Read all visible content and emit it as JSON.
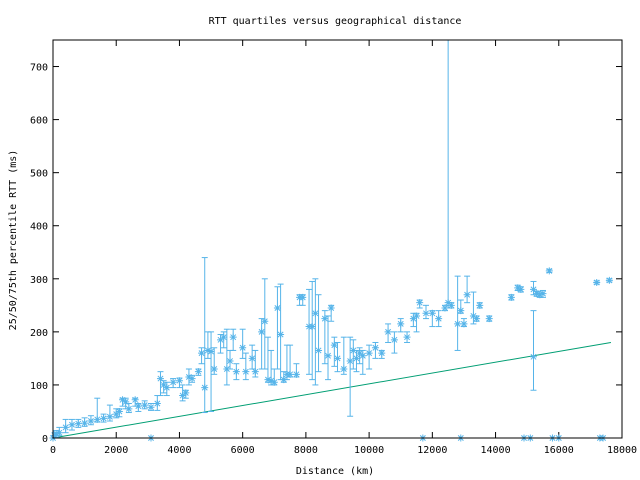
{
  "chart_data": {
    "type": "scatter",
    "title": "RTT quartiles versus geographical distance",
    "xlabel": "Distance (km)",
    "ylabel": "25/50/75th percentile RTT (ms)",
    "xlim": [
      0,
      18000
    ],
    "ylim": [
      0,
      750
    ],
    "xticks": [
      0,
      2000,
      4000,
      6000,
      8000,
      10000,
      12000,
      14000,
      16000,
      18000
    ],
    "yticks": [
      0,
      100,
      200,
      300,
      400,
      500,
      600,
      700
    ],
    "grid": false,
    "legend": "none",
    "colors": {
      "points": "#56b4e9",
      "line": "#009e73"
    },
    "reference_line": {
      "name": "speed-of-light-in-fiber bound",
      "slope_ms_per_km": 0.0102
    },
    "series": [
      {
        "name": "RTT quartiles",
        "columns": [
          "distance_km",
          "median_ms",
          "p25_ms",
          "p75_ms"
        ],
        "points": [
          [
            50,
            5,
            0,
            10
          ],
          [
            100,
            8,
            2,
            14
          ],
          [
            200,
            10,
            5,
            20
          ],
          [
            400,
            20,
            10,
            35
          ],
          [
            600,
            25,
            15,
            35
          ],
          [
            800,
            27,
            20,
            35
          ],
          [
            1000,
            28,
            22,
            38
          ],
          [
            1200,
            32,
            25,
            42
          ],
          [
            1400,
            35,
            30,
            75
          ],
          [
            1600,
            37,
            30,
            45
          ],
          [
            1800,
            40,
            32,
            62
          ],
          [
            2000,
            45,
            38,
            55
          ],
          [
            2100,
            50,
            40,
            55
          ],
          [
            2200,
            72,
            60,
            75
          ],
          [
            2300,
            68,
            55,
            75
          ],
          [
            2400,
            55,
            48,
            65
          ],
          [
            2600,
            72,
            60,
            75
          ],
          [
            2700,
            60,
            50,
            65
          ],
          [
            2900,
            62,
            55,
            70
          ],
          [
            3100,
            58,
            52,
            65
          ],
          [
            3300,
            65,
            52,
            80
          ],
          [
            3400,
            112,
            80,
            125
          ],
          [
            3500,
            100,
            85,
            108
          ],
          [
            3600,
            95,
            80,
            105
          ],
          [
            3800,
            105,
            95,
            112
          ],
          [
            4000,
            108,
            95,
            113
          ],
          [
            4100,
            80,
            70,
            100
          ],
          [
            4200,
            85,
            75,
            90
          ],
          [
            4300,
            115,
            100,
            130
          ],
          [
            4400,
            112,
            105,
            118
          ],
          [
            4600,
            125,
            118,
            130
          ],
          [
            4700,
            160,
            140,
            170
          ],
          [
            4800,
            95,
            48,
            340
          ],
          [
            4900,
            165,
            150,
            200
          ],
          [
            5000,
            163,
            50,
            200
          ],
          [
            5100,
            130,
            120,
            170
          ],
          [
            5300,
            185,
            160,
            195
          ],
          [
            5400,
            190,
            170,
            200
          ],
          [
            5500,
            130,
            100,
            205
          ],
          [
            5600,
            145,
            130,
            165
          ],
          [
            5700,
            190,
            165,
            205
          ],
          [
            5800,
            125,
            110,
            140
          ],
          [
            6000,
            170,
            150,
            205
          ],
          [
            6100,
            125,
            110,
            160
          ],
          [
            6300,
            150,
            130,
            175
          ],
          [
            6400,
            125,
            115,
            165
          ],
          [
            6600,
            200,
            130,
            225
          ],
          [
            6700,
            220,
            130,
            300
          ],
          [
            6800,
            110,
            105,
            190
          ],
          [
            6900,
            108,
            100,
            165
          ],
          [
            7000,
            105,
            100,
            130
          ],
          [
            7100,
            245,
            130,
            285
          ],
          [
            7200,
            195,
            110,
            290
          ],
          [
            7300,
            110,
            105,
            125
          ],
          [
            7400,
            120,
            110,
            175
          ],
          [
            7500,
            120,
            115,
            175
          ],
          [
            7700,
            120,
            115,
            140
          ],
          [
            7800,
            265,
            250,
            270
          ],
          [
            7900,
            265,
            250,
            270
          ],
          [
            8100,
            210,
            120,
            280
          ],
          [
            8200,
            210,
            110,
            295
          ],
          [
            8300,
            235,
            100,
            300
          ],
          [
            8400,
            165,
            125,
            270
          ],
          [
            8600,
            225,
            140,
            240
          ],
          [
            8700,
            155,
            110,
            230
          ],
          [
            8800,
            245,
            220,
            250
          ],
          [
            8900,
            175,
            135,
            190
          ],
          [
            9000,
            150,
            125,
            180
          ],
          [
            9200,
            130,
            120,
            190
          ],
          [
            9400,
            145,
            41,
            190
          ],
          [
            9500,
            165,
            130,
            185
          ],
          [
            9600,
            150,
            125,
            165
          ],
          [
            9700,
            160,
            140,
            170
          ],
          [
            9800,
            155,
            120,
            165
          ],
          [
            10000,
            160,
            130,
            175
          ],
          [
            10200,
            170,
            150,
            180
          ],
          [
            10400,
            160,
            150,
            165
          ],
          [
            10600,
            200,
            180,
            215
          ],
          [
            10800,
            185,
            160,
            200
          ],
          [
            11000,
            215,
            200,
            225
          ],
          [
            11200,
            190,
            180,
            200
          ],
          [
            11400,
            225,
            210,
            235
          ],
          [
            11500,
            230,
            200,
            235
          ],
          [
            11600,
            255,
            245,
            260
          ],
          [
            11800,
            235,
            225,
            250
          ],
          [
            12000,
            235,
            210,
            240
          ],
          [
            12200,
            225,
            210,
            240
          ],
          [
            12400,
            245,
            240,
            250
          ],
          [
            12500,
            255,
            245,
            750
          ],
          [
            12600,
            250,
            245,
            255
          ],
          [
            12800,
            215,
            165,
            305
          ],
          [
            12900,
            240,
            235,
            260
          ],
          [
            13000,
            215,
            210,
            225
          ],
          [
            13100,
            270,
            255,
            305
          ],
          [
            13300,
            230,
            215,
            275
          ],
          [
            13400,
            225,
            220,
            230
          ],
          [
            13500,
            250,
            245,
            255
          ],
          [
            13800,
            225,
            220,
            230
          ],
          [
            14500,
            265,
            260,
            270
          ],
          [
            14700,
            283,
            278,
            288
          ],
          [
            14800,
            280,
            275,
            285
          ],
          [
            15200,
            280,
            270,
            295
          ],
          [
            15300,
            272,
            267,
            277
          ],
          [
            15400,
            270,
            265,
            275
          ],
          [
            15500,
            272,
            265,
            278
          ],
          [
            15200,
            153,
            90,
            240
          ],
          [
            15700,
            315,
            312,
            318
          ],
          [
            17200,
            293,
            290,
            296
          ],
          [
            17600,
            297,
            294,
            300
          ],
          [
            0,
            0,
            0,
            0
          ],
          [
            3100,
            0,
            0,
            0
          ],
          [
            11700,
            0,
            0,
            0
          ],
          [
            12900,
            0,
            0,
            0
          ],
          [
            14900,
            0,
            0,
            0
          ],
          [
            15100,
            0,
            0,
            0
          ],
          [
            15800,
            0,
            0,
            0
          ],
          [
            16000,
            0,
            0,
            0
          ],
          [
            17300,
            0,
            0,
            0
          ],
          [
            17400,
            0,
            0,
            0
          ]
        ]
      }
    ]
  }
}
